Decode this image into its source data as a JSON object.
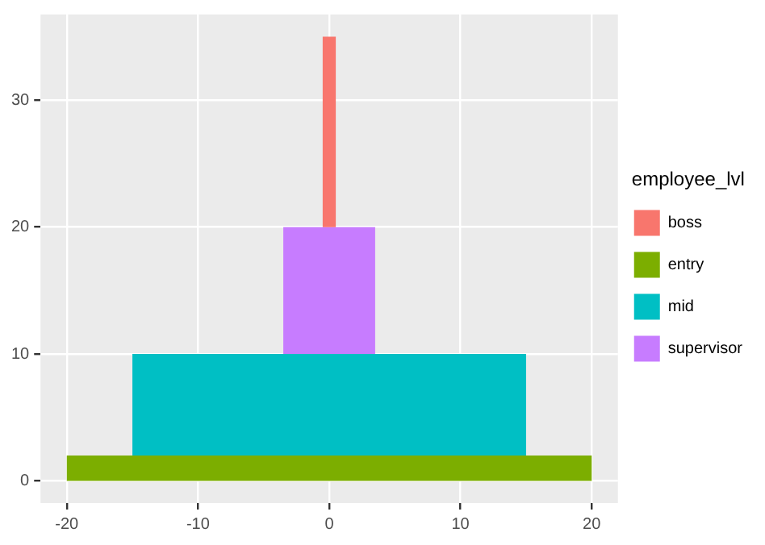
{
  "chart_data": {
    "type": "area",
    "legend_title": "employee_lvl",
    "legend": "right",
    "grid": true,
    "xlim": [
      -22,
      22
    ],
    "xticks": [
      -20,
      -10,
      0,
      10,
      20
    ],
    "ylim": [
      -1.75,
      36.75
    ],
    "yticks": [
      0,
      10,
      20,
      30
    ],
    "series": [
      {
        "name": "boss",
        "color": "#f8766d",
        "x": [
          -0.5,
          -0.5,
          0.5,
          0.5
        ],
        "values": [
          20,
          35,
          35,
          20
        ]
      },
      {
        "name": "entry",
        "color": "#7cae00",
        "x": [
          -20,
          -20,
          20,
          20
        ],
        "values": [
          0,
          2,
          2,
          0
        ]
      },
      {
        "name": "mid",
        "color": "#00bfc4",
        "x": [
          -15,
          -15,
          15,
          15
        ],
        "values": [
          2,
          10,
          10,
          2
        ]
      },
      {
        "name": "supervisor",
        "color": "#c77cff",
        "x": [
          -3.5,
          -3.5,
          3.5,
          3.5
        ],
        "values": [
          10,
          20,
          20,
          10
        ]
      }
    ]
  }
}
